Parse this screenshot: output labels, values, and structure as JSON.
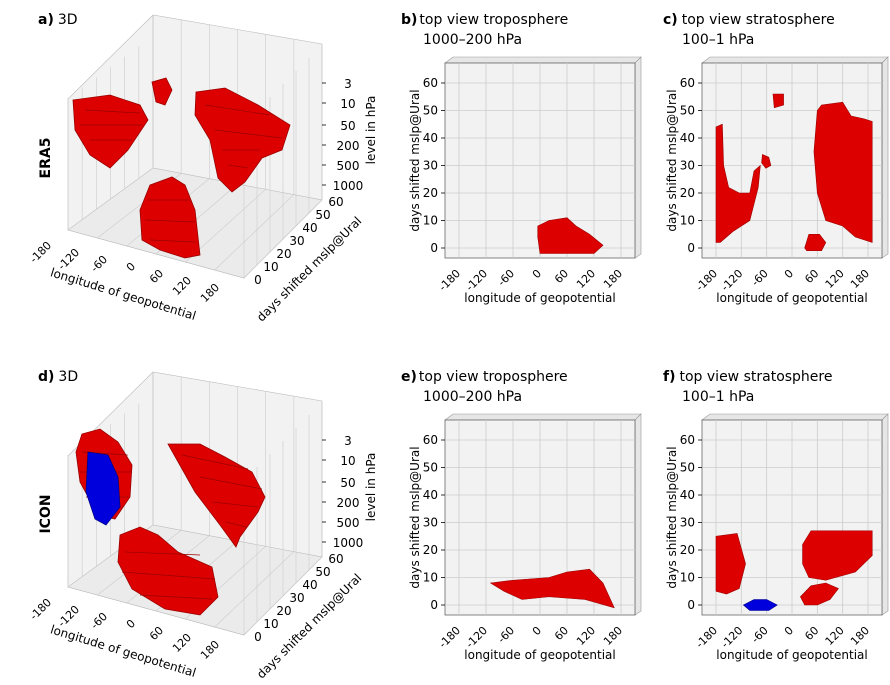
{
  "row_labels": [
    "ERA5",
    "ICON"
  ],
  "colors": {
    "red": "#dd0000",
    "red_dark": "#9a0000",
    "blue": "#0000dd",
    "pane": "#f2f2f2",
    "grid": "#cccccc"
  },
  "chart_data": [
    {
      "id": "a",
      "type": "3d-voxel",
      "letter": "a)",
      "title": "3D",
      "xlabel": "longitude of geopotential",
      "ylabel": "days shifted mslp@Ural",
      "zlabel": "level in hPa",
      "xticks": [
        "-180",
        "-120",
        "-60",
        "0",
        "60",
        "120",
        "180"
      ],
      "yticks": [
        "0",
        "10",
        "20",
        "30",
        "40",
        "50",
        "60"
      ],
      "zticks": [
        "3",
        "10",
        "50",
        "200",
        "500",
        "1000"
      ]
    },
    {
      "id": "b",
      "type": "top-view",
      "letter": "b)",
      "title": "top view troposphere",
      "subtitle": "1000–200 hPa",
      "xlabel": "longitude of geopotential",
      "ylabel": "days shifted mslp@Ural",
      "xticks": [
        "-180",
        "-120",
        "-60",
        "0",
        "60",
        "120",
        "180"
      ],
      "yticks": [
        "0",
        "10",
        "20",
        "30",
        "40",
        "50",
        "60"
      ]
    },
    {
      "id": "c",
      "type": "top-view",
      "letter": "c)",
      "title": "top view stratosphere",
      "subtitle": "100–1 hPa",
      "xlabel": "longitude of geopotential",
      "ylabel": "days shifted mslp@Ural",
      "xticks": [
        "-180",
        "-120",
        "-60",
        "0",
        "60",
        "120",
        "180"
      ],
      "yticks": [
        "0",
        "10",
        "20",
        "30",
        "40",
        "50",
        "60"
      ]
    },
    {
      "id": "d",
      "type": "3d-voxel",
      "letter": "d)",
      "title": "3D",
      "xlabel": "longitude of geopotential",
      "ylabel": "days shifted mslp@Ural",
      "zlabel": "level in hPa",
      "xticks": [
        "-180",
        "-120",
        "-60",
        "0",
        "60",
        "120",
        "180"
      ],
      "yticks": [
        "0",
        "10",
        "20",
        "30",
        "40",
        "50",
        "60"
      ],
      "zticks": [
        "3",
        "10",
        "50",
        "200",
        "500",
        "1000"
      ]
    },
    {
      "id": "e",
      "type": "top-view",
      "letter": "e)",
      "title": "top view troposphere",
      "subtitle": "1000–200 hPa",
      "xlabel": "longitude of geopotential",
      "ylabel": "days shifted mslp@Ural",
      "xticks": [
        "-180",
        "-120",
        "-60",
        "0",
        "60",
        "120",
        "180"
      ],
      "yticks": [
        "0",
        "10",
        "20",
        "30",
        "40",
        "50",
        "60"
      ]
    },
    {
      "id": "f",
      "type": "top-view",
      "letter": "f)",
      "title": "top view stratosphere",
      "subtitle": "100–1 hPa",
      "xlabel": "longitude of geopotential",
      "ylabel": "days shifted mslp@Ural",
      "xticks": [
        "-180",
        "-120",
        "-60",
        "0",
        "60",
        "120",
        "180"
      ],
      "yticks": [
        "0",
        "10",
        "20",
        "30",
        "40",
        "50",
        "60"
      ]
    }
  ]
}
